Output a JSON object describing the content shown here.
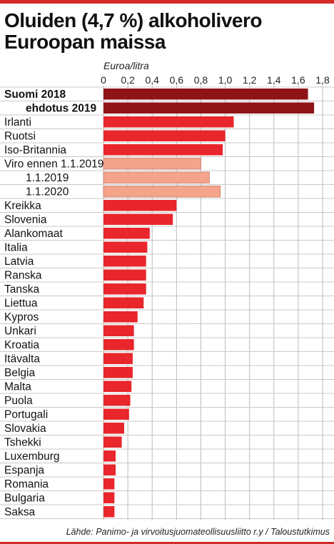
{
  "header": {
    "title_line1": "Oluiden (4,7 %) alkoholivero",
    "title_line2": "Euroopan maissa"
  },
  "footer": {
    "source": "Lähde: Panimo- ja virvoitusjuomateollisuusliitto r.y / Taloustutkimus"
  },
  "colors": {
    "accent_red": "#d32a2a",
    "finland": "#8e1418",
    "bar": "#e8262b",
    "estonia": "#f4a48a",
    "grid": "#bbbbbb"
  },
  "chart_data": {
    "type": "bar",
    "orientation": "horizontal",
    "xlabel": "Euroa/litra",
    "xlim": [
      0,
      1.8
    ],
    "xticks": [
      "0",
      "0,2",
      "0,4",
      "0,6",
      "0,8",
      "1,0",
      "1,2",
      "1,4",
      "1,6",
      "1,8"
    ],
    "grid": true,
    "categories": [
      "Suomi 2018",
      "ehdotus 2019",
      "Irlanti",
      "Ruotsi",
      "Iso-Britannia",
      "Viro ennen 1.1.2019",
      "1.1.2019",
      "1.1.2020",
      "Kreikka",
      "Slovenia",
      "Alankomaat",
      "Italia",
      "Latvia",
      "Ranska",
      "Tanska",
      "Liettua",
      "Kypros",
      "Unkari",
      "Kroatia",
      "Itävalta",
      "Belgia",
      "Malta",
      "Puola",
      "Portugali",
      "Slovakia",
      "Tshekki",
      "Luxemburg",
      "Espanja",
      "Romania",
      "Bulgaria",
      "Saksa"
    ],
    "values": [
      1.68,
      1.73,
      1.07,
      1.0,
      0.98,
      0.8,
      0.87,
      0.96,
      0.6,
      0.57,
      0.38,
      0.36,
      0.35,
      0.35,
      0.35,
      0.33,
      0.28,
      0.25,
      0.25,
      0.24,
      0.24,
      0.23,
      0.22,
      0.21,
      0.17,
      0.15,
      0.1,
      0.1,
      0.09,
      0.09,
      0.09
    ],
    "groups": [
      "finland",
      "finland",
      "default",
      "default",
      "default",
      "estonia",
      "estonia",
      "estonia",
      "default",
      "default",
      "default",
      "default",
      "default",
      "default",
      "default",
      "default",
      "default",
      "default",
      "default",
      "default",
      "default",
      "default",
      "default",
      "default",
      "default",
      "default",
      "default",
      "default",
      "default",
      "default",
      "default"
    ],
    "bold_labels": [
      0,
      1
    ],
    "label_indent": [
      0,
      1,
      0,
      0,
      0,
      0,
      1,
      1,
      0,
      0,
      0,
      0,
      0,
      0,
      0,
      0,
      0,
      0,
      0,
      0,
      0,
      0,
      0,
      0,
      0,
      0,
      0,
      0,
      0,
      0,
      0
    ]
  }
}
